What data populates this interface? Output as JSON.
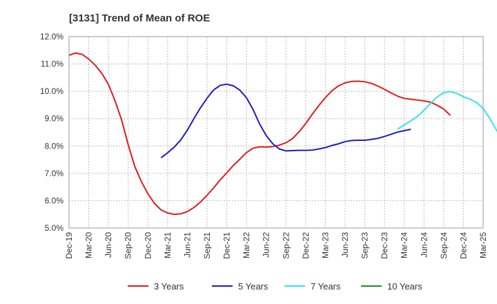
{
  "chart_data": {
    "type": "line",
    "title": "[3131]  Trend of Mean of ROE",
    "xlabel": "",
    "ylabel": "",
    "x_ticks": [
      "Dec-19",
      "Mar-20",
      "Jun-20",
      "Sep-20",
      "Dec-20",
      "Mar-21",
      "Jun-21",
      "Sep-21",
      "Dec-21",
      "Mar-22",
      "Jun-22",
      "Sep-22",
      "Dec-22",
      "Mar-23",
      "Jun-23",
      "Sep-23",
      "Dec-23",
      "Mar-24",
      "Jun-24",
      "Sep-24",
      "Dec-24",
      "Mar-25"
    ],
    "y_ticks": [
      "5.0%",
      "6.0%",
      "7.0%",
      "8.0%",
      "9.0%",
      "10.0%",
      "11.0%",
      "12.0%"
    ],
    "ylim": [
      5.0,
      12.0
    ],
    "grid": true,
    "legend_position": "bottom",
    "series": [
      {
        "name": "3 Years",
        "color": "#dd1c1c",
        "values": [
          11.32,
          11.4,
          11.35,
          11.18,
          10.95,
          10.65,
          10.25,
          9.65,
          8.95,
          8.05,
          7.25,
          6.7,
          6.25,
          5.9,
          5.66,
          5.55,
          5.5,
          5.52,
          5.6,
          5.75,
          5.95,
          6.2,
          6.47,
          6.76,
          7.02,
          7.29,
          7.52,
          7.76,
          7.92,
          7.97,
          7.96,
          7.98,
          8.03,
          8.12,
          8.27,
          8.52,
          8.82,
          9.16,
          9.48,
          9.77,
          10.02,
          10.2,
          10.31,
          10.36,
          10.37,
          10.35,
          10.29,
          10.19,
          10.07,
          9.94,
          9.82,
          9.74,
          9.71,
          9.68,
          9.65,
          9.6,
          9.49,
          9.35,
          9.12
        ]
      },
      {
        "name": "5 Years",
        "color": "#1c1cbe",
        "values": [
          null,
          null,
          null,
          null,
          null,
          null,
          null,
          null,
          null,
          null,
          null,
          null,
          null,
          null,
          7.57,
          7.75,
          7.96,
          8.22,
          8.58,
          9.0,
          9.4,
          9.75,
          10.05,
          10.22,
          10.26,
          10.2,
          10.04,
          9.76,
          9.33,
          8.8,
          8.38,
          8.08,
          7.89,
          7.82,
          7.83,
          7.84,
          7.84,
          7.85,
          7.89,
          7.94,
          8.02,
          8.08,
          8.16,
          8.2,
          8.21,
          8.21,
          8.24,
          8.28,
          8.35,
          8.43,
          8.51,
          8.56,
          8.61
        ]
      },
      {
        "name": "7 Years",
        "color": "#2ee6e6",
        "values": [
          null,
          null,
          null,
          null,
          null,
          null,
          null,
          null,
          null,
          null,
          null,
          null,
          null,
          null,
          null,
          null,
          null,
          null,
          null,
          null,
          null,
          null,
          null,
          null,
          null,
          null,
          null,
          null,
          null,
          null,
          null,
          null,
          null,
          null,
          null,
          null,
          null,
          null,
          null,
          null,
          null,
          null,
          null,
          null,
          null,
          null,
          null,
          null,
          null,
          null,
          8.62,
          8.77,
          8.92,
          9.08,
          9.31,
          9.56,
          9.79,
          9.95,
          9.99,
          9.92,
          9.8,
          9.71,
          9.59,
          9.37,
          9.01,
          8.59,
          8.15
        ]
      },
      {
        "name": "10 Years",
        "color": "#1f8a1f",
        "values": []
      }
    ]
  }
}
